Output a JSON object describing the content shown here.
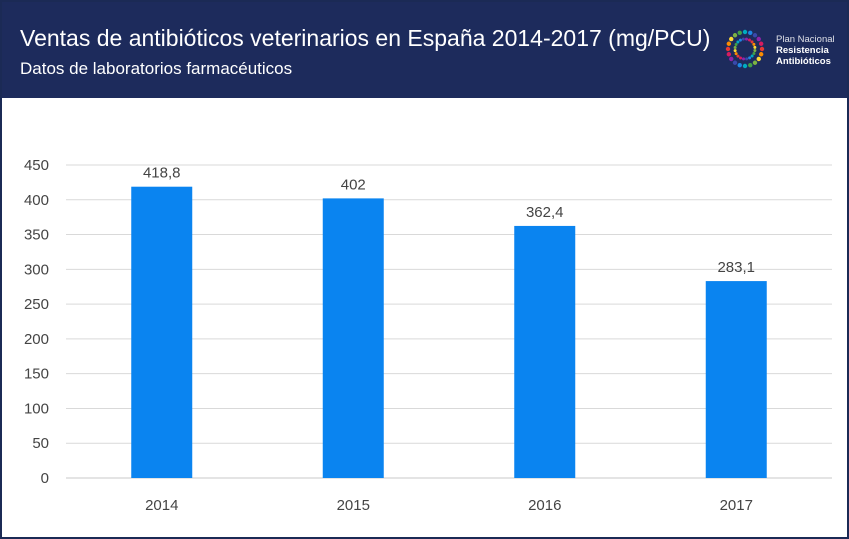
{
  "header": {
    "title": "Ventas de antibióticos veterinarios en España 2014-2017 (mg/PCU)",
    "subtitle": "Datos de laboratorios farmacéuticos"
  },
  "logo": {
    "line1": "Plan Nacional",
    "line2": "Resistencia",
    "line3": "Antibióticos"
  },
  "colors": {
    "header_bg": "#1d2b5c",
    "bar": "#0a84f0",
    "grid": "#d9d9d9"
  },
  "chart_data": {
    "type": "bar",
    "title": "Ventas de antibióticos veterinarios en España 2014-2017 (mg/PCU)",
    "categories": [
      "2014",
      "2015",
      "2016",
      "2017"
    ],
    "values": [
      418.8,
      402,
      362.4,
      283.1
    ],
    "value_labels": [
      "418,8",
      "402",
      "362,4",
      "283,1"
    ],
    "ylim": [
      0,
      450
    ],
    "yticks": [
      0,
      50,
      100,
      150,
      200,
      250,
      300,
      350,
      400,
      450
    ],
    "xlabel": "",
    "ylabel": "",
    "grid": true,
    "legend": "none"
  }
}
